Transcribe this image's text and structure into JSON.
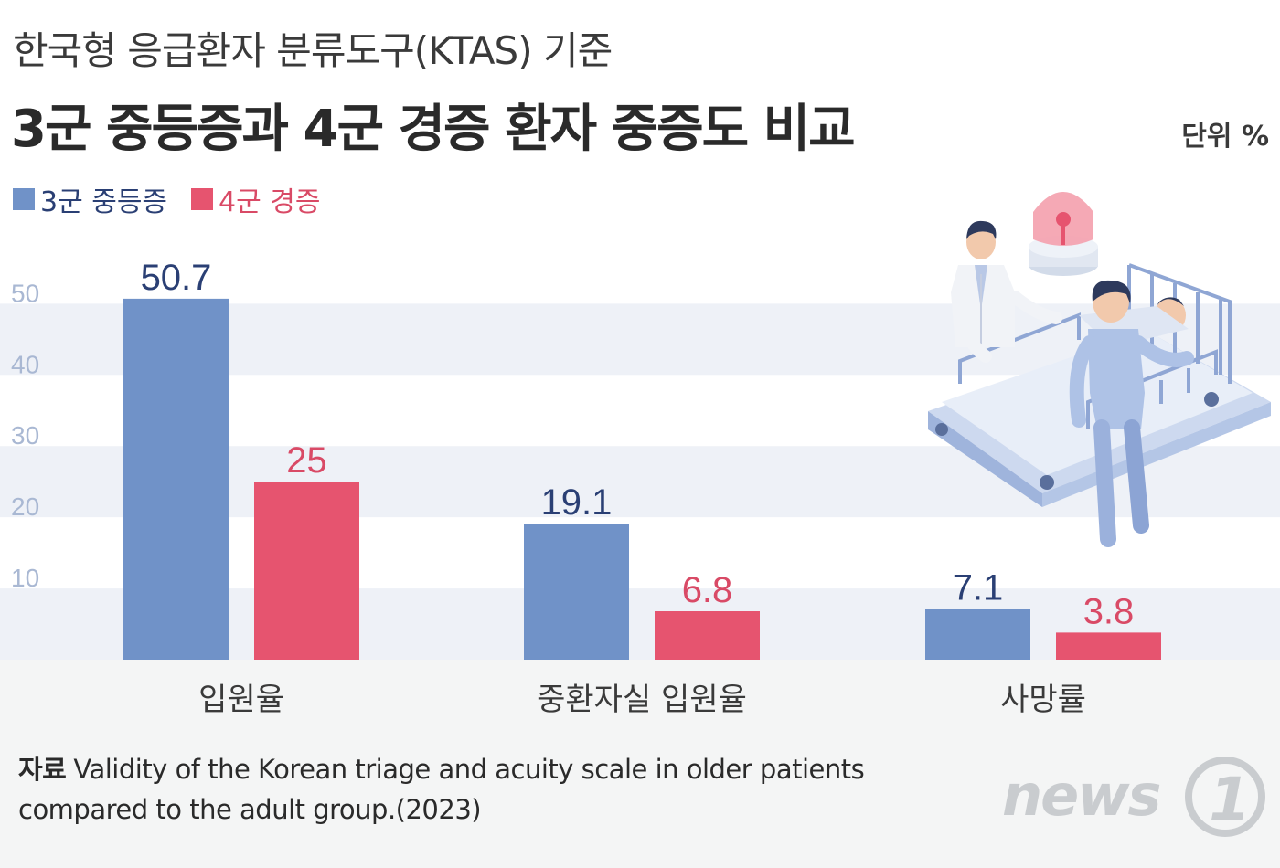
{
  "header": {
    "subtitle": "한국형 응급환자 분류도구(KTAS) 기준",
    "title": "3군 중등증과 4군 경증 환자 중증도 비교",
    "unit": "단위 %"
  },
  "colors": {
    "series1": "#7092c8",
    "series2": "#e6546f",
    "series1_label": "#2a3f74",
    "series2_label": "#d94a66",
    "band": "#eef1f7",
    "tick": "#a9b8d3",
    "footer_bg": "#f4f5f5"
  },
  "chart_data": {
    "type": "bar",
    "categories": [
      "입원율",
      "중환자실 입원율",
      "사망률"
    ],
    "series": [
      {
        "name": "3군 중등증",
        "values": [
          50.7,
          19.1,
          7.1
        ],
        "labels": [
          "50.7",
          "19.1",
          "7.1"
        ]
      },
      {
        "name": "4군 경증",
        "values": [
          25,
          6.8,
          3.8
        ],
        "labels": [
          "25",
          "6.8",
          "3.8"
        ]
      }
    ],
    "yticks": [
      "10",
      "20",
      "30",
      "40",
      "50"
    ],
    "ylim": [
      0,
      50
    ],
    "legend_position": "top-left"
  },
  "source": {
    "label": "자료",
    "text": "Validity of the Korean triage and acuity scale in older patients compared to the adult group.(2023)"
  },
  "brand": {
    "name": "news",
    "mark": "1"
  },
  "illustration": {
    "description_icon": "hospital-bed-illustration"
  }
}
